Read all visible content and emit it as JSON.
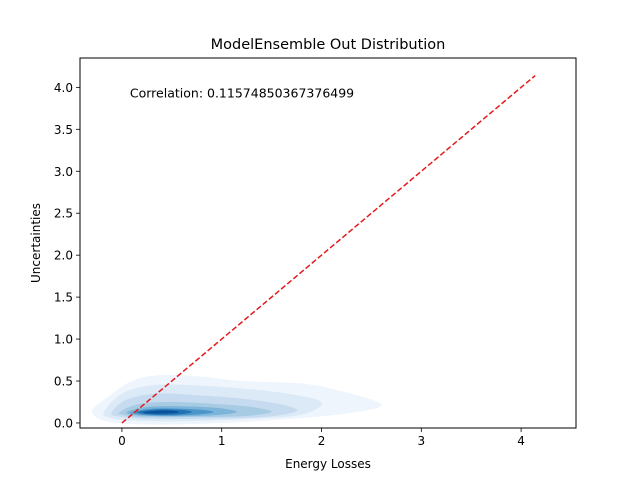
{
  "chart_data": {
    "type": "kde-contour",
    "title": "ModelEnsemble Out Distribution",
    "xlabel": "Energy Losses",
    "ylabel": "Uncertainties",
    "xlim": [
      -0.42,
      4.55
    ],
    "ylim": [
      -0.06,
      4.35
    ],
    "x_ticks": [
      0,
      1,
      2,
      3,
      4
    ],
    "y_ticks": [
      0.0,
      0.5,
      1.0,
      1.5,
      2.0,
      2.5,
      3.0,
      3.5,
      4.0
    ],
    "annotation": "Correlation: 0.11574850367376499",
    "annotation_pos_data": [
      0.08,
      3.93
    ],
    "reference_line": {
      "x": [
        0,
        4.14
      ],
      "y": [
        0,
        4.14
      ],
      "color": "#e41a1c",
      "style": "dashed"
    },
    "density_levels": [
      {
        "level": 1,
        "color": "#eef5fc",
        "points": [
          [
            -0.3,
            0.14
          ],
          [
            -0.15,
            0.3
          ],
          [
            0.1,
            0.5
          ],
          [
            0.4,
            0.57
          ],
          [
            0.8,
            0.55
          ],
          [
            1.2,
            0.5
          ],
          [
            1.8,
            0.47
          ],
          [
            2.2,
            0.38
          ],
          [
            2.6,
            0.22
          ],
          [
            2.3,
            0.12
          ],
          [
            1.7,
            0.05
          ],
          [
            1.0,
            0.0
          ],
          [
            0.3,
            -0.02
          ],
          [
            -0.15,
            0.02
          ]
        ]
      },
      {
        "level": 2,
        "color": "#dce9f6",
        "points": [
          [
            -0.18,
            0.13
          ],
          [
            0.0,
            0.35
          ],
          [
            0.3,
            0.45
          ],
          [
            0.7,
            0.45
          ],
          [
            1.1,
            0.42
          ],
          [
            1.6,
            0.36
          ],
          [
            2.0,
            0.25
          ],
          [
            1.8,
            0.1
          ],
          [
            1.3,
            0.05
          ],
          [
            0.6,
            0.02
          ],
          [
            0.1,
            0.03
          ],
          [
            -0.12,
            0.06
          ]
        ]
      },
      {
        "level": 3,
        "color": "#c6dbef",
        "points": [
          [
            -0.1,
            0.13
          ],
          [
            0.05,
            0.28
          ],
          [
            0.35,
            0.35
          ],
          [
            0.75,
            0.33
          ],
          [
            1.2,
            0.29
          ],
          [
            1.6,
            0.22
          ],
          [
            1.75,
            0.14
          ],
          [
            1.4,
            0.07
          ],
          [
            0.8,
            0.05
          ],
          [
            0.25,
            0.05
          ],
          [
            -0.05,
            0.08
          ]
        ]
      },
      {
        "level": 4,
        "color": "#a6cbe3",
        "points": [
          [
            -0.02,
            0.13
          ],
          [
            0.15,
            0.22
          ],
          [
            0.45,
            0.25
          ],
          [
            0.9,
            0.23
          ],
          [
            1.3,
            0.19
          ],
          [
            1.5,
            0.13
          ],
          [
            1.2,
            0.08
          ],
          [
            0.7,
            0.07
          ],
          [
            0.2,
            0.07
          ],
          [
            0.0,
            0.1
          ]
        ]
      },
      {
        "level": 5,
        "color": "#7db4d9",
        "points": [
          [
            0.05,
            0.13
          ],
          [
            0.25,
            0.19
          ],
          [
            0.55,
            0.2
          ],
          [
            0.95,
            0.18
          ],
          [
            1.15,
            0.13
          ],
          [
            0.9,
            0.09
          ],
          [
            0.5,
            0.08
          ],
          [
            0.15,
            0.09
          ]
        ]
      },
      {
        "level": 6,
        "color": "#4a95c9",
        "points": [
          [
            0.1,
            0.13
          ],
          [
            0.3,
            0.17
          ],
          [
            0.6,
            0.17
          ],
          [
            0.85,
            0.15
          ],
          [
            0.9,
            0.12
          ],
          [
            0.6,
            0.09
          ],
          [
            0.3,
            0.09
          ],
          [
            0.13,
            0.11
          ]
        ]
      },
      {
        "level": 7,
        "color": "#2171b5",
        "points": [
          [
            0.15,
            0.13
          ],
          [
            0.35,
            0.16
          ],
          [
            0.6,
            0.155
          ],
          [
            0.7,
            0.13
          ],
          [
            0.55,
            0.1
          ],
          [
            0.3,
            0.1
          ]
        ]
      },
      {
        "level": 8,
        "color": "#08519c",
        "points": [
          [
            0.22,
            0.13
          ],
          [
            0.4,
            0.15
          ],
          [
            0.55,
            0.14
          ],
          [
            0.55,
            0.12
          ],
          [
            0.38,
            0.11
          ],
          [
            0.25,
            0.115
          ]
        ]
      }
    ]
  }
}
